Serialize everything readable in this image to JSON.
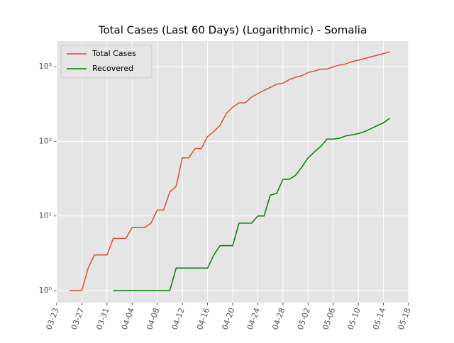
{
  "chart_data": {
    "type": "line",
    "title": "Total Cases (Last 60 Days) (Logarithmic) - Somalia",
    "x": [
      "03-25",
      "03-26",
      "03-27",
      "03-28",
      "03-29",
      "03-30",
      "03-31",
      "04-01",
      "04-02",
      "04-03",
      "04-04",
      "04-05",
      "04-06",
      "04-07",
      "04-08",
      "04-09",
      "04-10",
      "04-11",
      "04-12",
      "04-13",
      "04-14",
      "04-15",
      "04-16",
      "04-17",
      "04-18",
      "04-19",
      "04-20",
      "04-21",
      "04-22",
      "04-23",
      "04-24",
      "04-25",
      "04-26",
      "04-27",
      "04-28",
      "04-29",
      "04-30",
      "05-01",
      "05-02",
      "05-03",
      "05-04",
      "05-05",
      "05-06",
      "05-07",
      "05-08",
      "05-09",
      "05-10",
      "05-11",
      "05-12",
      "05-13",
      "05-14",
      "05-15"
    ],
    "series": [
      {
        "name": "Total Cases",
        "color": "#E24A33",
        "values": [
          1,
          1,
          1,
          2,
          3,
          3,
          3,
          5,
          5,
          5,
          7,
          7,
          7,
          8,
          12,
          12,
          21,
          25,
          60,
          60,
          80,
          80,
          116,
          135,
          164,
          237,
          286,
          328,
          328,
          390,
          436,
          480,
          528,
          582,
          601,
          671,
          722,
          756,
          835,
          873,
          928,
          928,
          997,
          1054,
          1089,
          1170,
          1219,
          1284,
          1357,
          1421,
          1502,
          1573
        ]
      },
      {
        "name": "Recovered",
        "color": "#008000",
        "values": [
          null,
          null,
          null,
          null,
          null,
          null,
          null,
          1,
          1,
          1,
          1,
          1,
          1,
          1,
          1,
          1,
          1,
          2,
          2,
          2,
          2,
          2,
          2,
          3,
          4,
          4,
          4,
          8,
          8,
          8,
          10,
          10,
          19,
          20,
          31,
          31,
          35,
          45,
          60,
          72,
          85,
          107,
          107,
          110,
          118,
          122,
          127,
          135,
          148,
          162,
          177,
          204
        ]
      }
    ],
    "xlim": [
      "03-23",
      "05-18"
    ],
    "xticks": [
      "03-23",
      "03-27",
      "03-31",
      "04-04",
      "04-08",
      "04-12",
      "04-16",
      "04-20",
      "04-24",
      "04-28",
      "05-02",
      "05-06",
      "05-10",
      "05-14",
      "05-18"
    ],
    "ylim": [
      0.69,
      2200
    ],
    "yticks": [
      {
        "value": 1,
        "label": "10⁰"
      },
      {
        "value": 10,
        "label": "10¹"
      },
      {
        "value": 100,
        "label": "10²"
      },
      {
        "value": 1000,
        "label": "10³"
      }
    ],
    "log_y": true,
    "grid": true,
    "legend": "upper-left"
  }
}
